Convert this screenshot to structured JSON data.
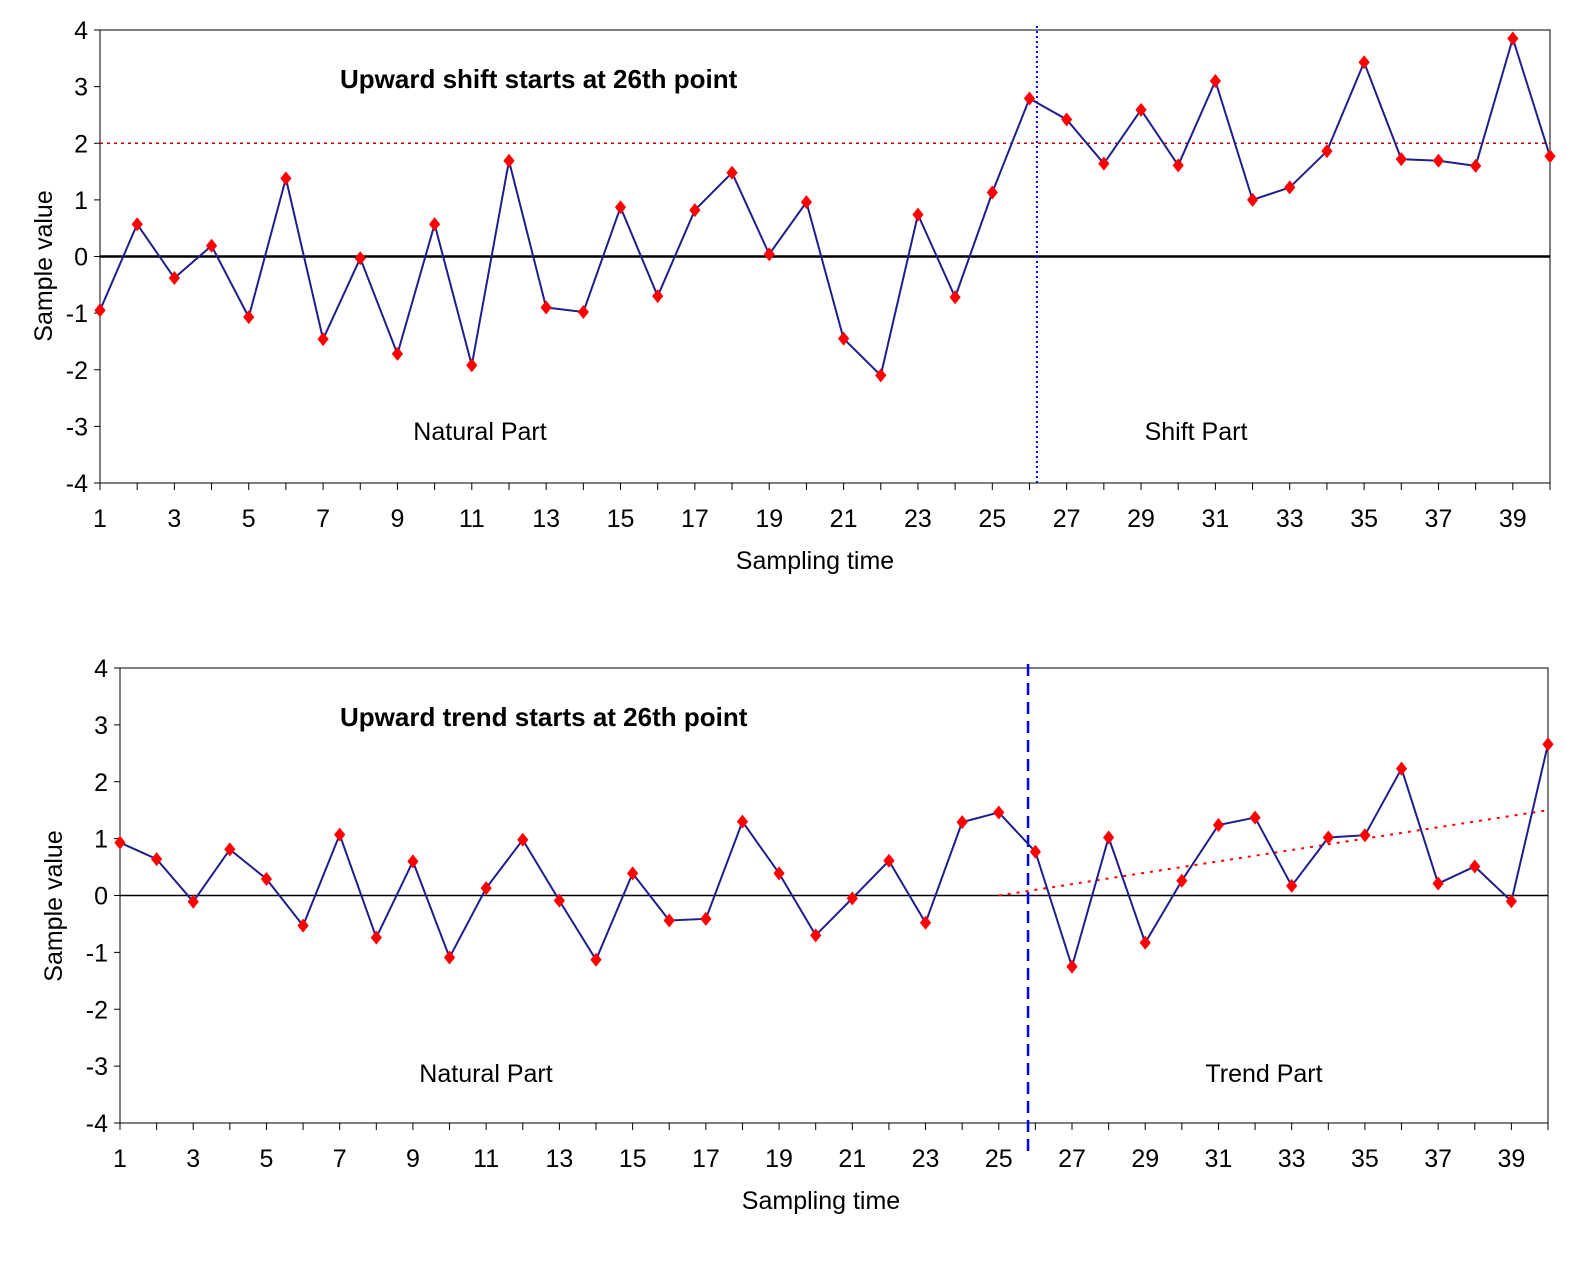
{
  "chart_data": [
    {
      "type": "line",
      "title": "Upward shift  starts at  26th point",
      "xlabel": "Sampling time",
      "ylabel": "Sample value",
      "xlim": [
        1,
        40
      ],
      "ylim": [
        -4,
        4
      ],
      "yticks": [
        "4",
        "3",
        "2",
        "1",
        "0",
        "-1",
        "-2",
        "-3",
        "-4"
      ],
      "xticks": [
        "1",
        "3",
        "5",
        "7",
        "9",
        "11",
        "13",
        "15",
        "17",
        "19",
        "21",
        "23",
        "25",
        "27",
        "29",
        "31",
        "33",
        "35",
        "37",
        "39"
      ],
      "region_labels": {
        "left": "Natural Part",
        "right": "Shift Part"
      },
      "series": [
        {
          "x": [
            1,
            2,
            3,
            4,
            5,
            6,
            7,
            8,
            9,
            10,
            11,
            12,
            13,
            14,
            15,
            16,
            17,
            18,
            19,
            20,
            21,
            22,
            23,
            24,
            25,
            26,
            27,
            28,
            29,
            30,
            31,
            32,
            33,
            34,
            35,
            36,
            37,
            38,
            39,
            40
          ],
          "values": [
            -0.95,
            0.57,
            -0.38,
            0.19,
            -1.07,
            1.38,
            -1.46,
            -0.03,
            -1.72,
            0.57,
            -1.92,
            1.69,
            -0.9,
            -0.98,
            0.87,
            -0.7,
            0.82,
            1.48,
            0.04,
            0.96,
            -1.45,
            -2.1,
            0.74,
            -0.72,
            1.13,
            2.79,
            2.42,
            1.64,
            2.59,
            1.61,
            3.1,
            1.0,
            1.22,
            1.86,
            3.43,
            1.72,
            1.69,
            1.6,
            3.85,
            1.77
          ]
        }
      ],
      "colors": {
        "line": "#1f1f8c",
        "marker": "#ff0000",
        "change_line": "#0000ff",
        "limit_line": "#cc0000"
      },
      "marker": "diamond",
      "reference_lines": {
        "zero": 0,
        "upper_limit": 2,
        "change_point_x": 26.2
      },
      "change_line_style": "dotted"
    },
    {
      "type": "line",
      "title": "Upward trend  starts at  26th point",
      "xlabel": "Sampling time",
      "ylabel": "Sample value",
      "xlim": [
        1,
        40
      ],
      "ylim": [
        -4,
        4
      ],
      "yticks": [
        "4",
        "3",
        "2",
        "1",
        "0",
        "-1",
        "-2",
        "-3",
        "-4"
      ],
      "xticks": [
        "1",
        "3",
        "5",
        "7",
        "9",
        "11",
        "13",
        "15",
        "17",
        "19",
        "21",
        "23",
        "25",
        "27",
        "29",
        "31",
        "33",
        "35",
        "37",
        "39"
      ],
      "region_labels": {
        "left": "Natural Part",
        "right": "Trend Part"
      },
      "series": [
        {
          "x": [
            1,
            2,
            3,
            4,
            5,
            6,
            7,
            8,
            9,
            10,
            11,
            12,
            13,
            14,
            15,
            16,
            17,
            18,
            19,
            20,
            21,
            22,
            23,
            24,
            25,
            26,
            27,
            28,
            29,
            30,
            31,
            32,
            33,
            34,
            35,
            36,
            37,
            38,
            39,
            40
          ],
          "values": [
            0.93,
            0.64,
            -0.11,
            0.81,
            0.29,
            -0.53,
            1.07,
            -0.74,
            0.6,
            -1.09,
            0.13,
            0.98,
            -0.09,
            -1.13,
            0.39,
            -0.44,
            -0.41,
            1.3,
            0.39,
            -0.7,
            -0.05,
            0.61,
            -0.48,
            1.29,
            1.46,
            0.77,
            -1.25,
            1.02,
            -0.83,
            0.26,
            1.24,
            1.37,
            0.17,
            1.02,
            1.06,
            2.23,
            0.21,
            0.51,
            -0.1,
            2.66
          ]
        }
      ],
      "colors": {
        "line": "#1f1f8c",
        "marker": "#ff0000",
        "change_line": "#0000ff",
        "trend_line": "#ff0000"
      },
      "marker": "diamond",
      "reference_lines": {
        "zero": 0,
        "change_point_x": 25.8,
        "trend_from": [
          25,
          0
        ],
        "trend_to": [
          40,
          1.5
        ]
      },
      "change_line_style": "dashed"
    }
  ]
}
